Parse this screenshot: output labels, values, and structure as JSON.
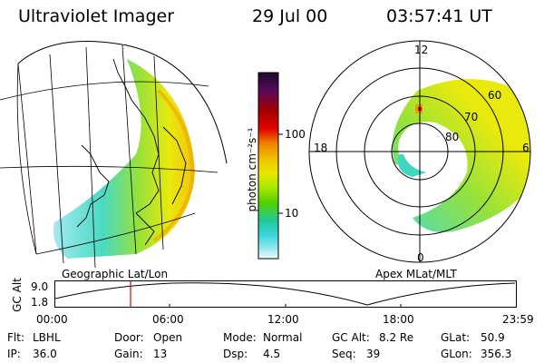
{
  "header": {
    "instrument": "Ultraviolet Imager",
    "date": "29 Jul 00",
    "time": "03:57:41 UT"
  },
  "left_panel": {
    "label": "Geographic Lat/Lon"
  },
  "right_panel": {
    "label": "Apex MLat/MLT",
    "mlt_labels": {
      "top": "12",
      "bottom": "0",
      "left": "18",
      "right": "6"
    },
    "lat_labels": [
      "60",
      "70",
      "80"
    ]
  },
  "colorbar": {
    "unit_label": "photon cm⁻²s⁻¹",
    "ticks": [
      "100",
      "10"
    ],
    "colors": [
      "#1a0a2e",
      "#5a0a5a",
      "#a00000",
      "#e00000",
      "#f08000",
      "#f0c000",
      "#e8e800",
      "#a8e800",
      "#50d000",
      "#20c8a0",
      "#40d8e0",
      "#a0e8f0",
      "#f0f8ff"
    ]
  },
  "altitude_plot": {
    "ylabel": "GC Alt",
    "y_ticks": [
      "9.0",
      "1.8"
    ],
    "x_ticks": [
      "00:00",
      "06:00",
      "12:00",
      "18:00",
      "23:59"
    ],
    "marker_time": "03:57:41",
    "marker_color": "#e00000"
  },
  "status": {
    "row1": [
      {
        "key": "Flt:",
        "val": "LBHL"
      },
      {
        "key": "Door:",
        "val": "Open"
      },
      {
        "key": "Mode:",
        "val": "Normal"
      },
      {
        "key": "GC Alt:",
        "val": "8.2 Re"
      },
      {
        "key": "GLat:",
        "val": "50.9"
      }
    ],
    "row2": [
      {
        "key": "IP:",
        "val": "36.0"
      },
      {
        "key": "Gain:",
        "val": "13"
      },
      {
        "key": "Dsp:",
        "val": "4.5"
      },
      {
        "key": "Seq:",
        "val": "39"
      },
      {
        "key": "GLon:",
        "val": "356.3"
      }
    ]
  }
}
